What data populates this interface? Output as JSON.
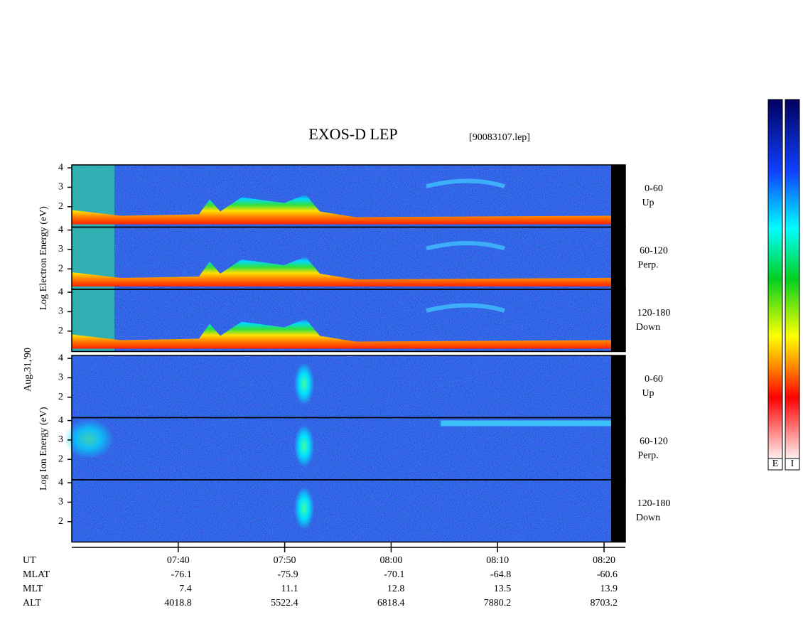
{
  "chart_data": {
    "type": "spectrogram",
    "title": "EXOS-D LEP",
    "subtitle": "[90083107.lep]",
    "date_label": "Aug.31,'90",
    "xlim": [
      "07:30",
      "08:22"
    ],
    "xticks": [
      "07:40",
      "07:50",
      "08:00",
      "08:10",
      "08:20"
    ],
    "x_row_label": "UT",
    "rows": [
      {
        "label": "MLAT",
        "values": [
          -76.1,
          -75.9,
          -70.1,
          -64.8,
          -60.6
        ]
      },
      {
        "label": "MLT",
        "values": [
          7.4,
          11.1,
          12.8,
          13.5,
          13.9
        ]
      },
      {
        "label": "ALT",
        "values": [
          4018.8,
          5522.4,
          6818.4,
          7880.2,
          8703.2
        ]
      }
    ],
    "groups": [
      {
        "ylabel": "Log Electron Energy (eV)",
        "ylim": [
          0.95,
          4.15
        ],
        "yticks": [
          2,
          3,
          4
        ],
        "subpanels": [
          {
            "range": "0-60",
            "direction": "Up"
          },
          {
            "range": "60-120",
            "direction": "Perp."
          },
          {
            "range": "120-180",
            "direction": "Down"
          }
        ]
      },
      {
        "ylabel": "Log Ion Energy (eV)",
        "ylim": [
          0.95,
          4.15
        ],
        "yticks": [
          2,
          3,
          4
        ],
        "subpanels": [
          {
            "range": "0-60",
            "direction": "Up"
          },
          {
            "range": "60-120",
            "direction": "Perp."
          },
          {
            "range": "120-180",
            "direction": "Down"
          }
        ]
      }
    ],
    "colorbars": [
      "E",
      "I"
    ]
  }
}
